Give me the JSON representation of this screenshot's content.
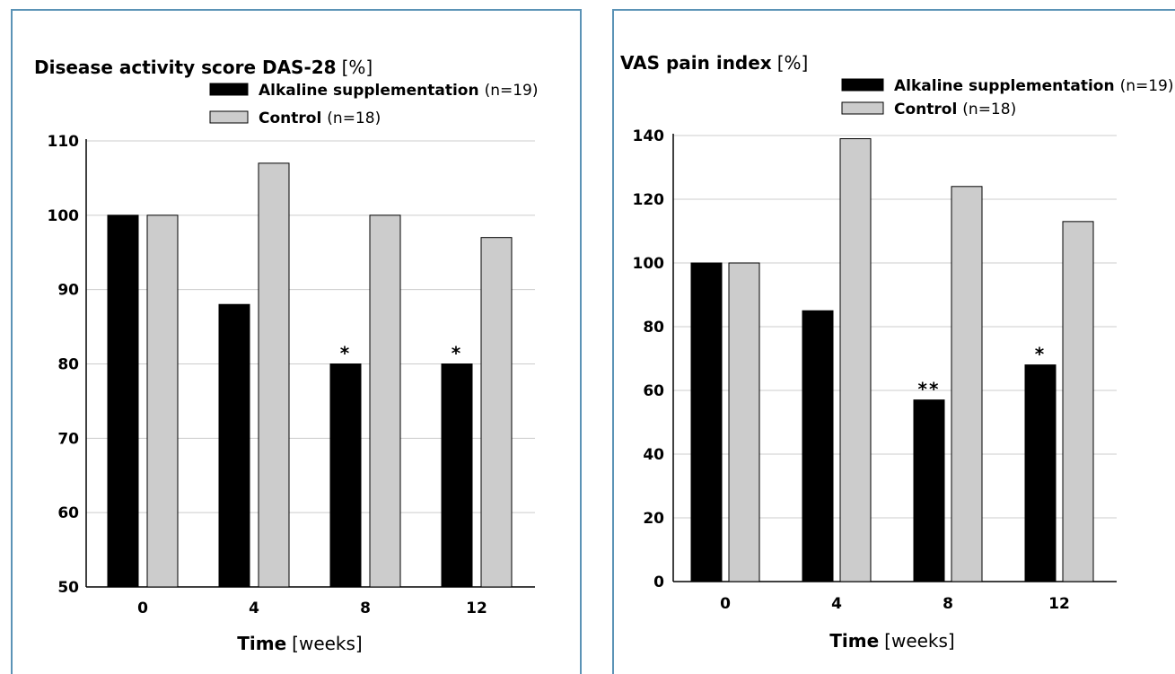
{
  "chart_data": [
    {
      "type": "bar",
      "title": "Disease activity score DAS-28",
      "title_unit": "[%]",
      "categories": [
        "0",
        "4",
        "8",
        "12"
      ],
      "series": [
        {
          "name": "Alkaline supplementation",
          "n_label": "(n=19)",
          "values": [
            100,
            88,
            80,
            80
          ],
          "color": "#000000"
        },
        {
          "name": "Control",
          "n_label": "(n=18)",
          "values": [
            100,
            107,
            100,
            97
          ],
          "color": "#cccccc"
        }
      ],
      "annotations": [
        {
          "category": "8",
          "series": 0,
          "text": "*"
        },
        {
          "category": "12",
          "series": 0,
          "text": "*"
        }
      ],
      "yticks": [
        50,
        60,
        70,
        80,
        90,
        100,
        110
      ],
      "ylim": [
        50,
        110
      ],
      "xlabel": "Time",
      "xlabel_unit": "[weeks]",
      "ylabel": "",
      "grid": true,
      "legend": "top-right"
    },
    {
      "type": "bar",
      "title": "VAS pain index",
      "title_unit": "[%]",
      "categories": [
        "0",
        "4",
        "8",
        "12"
      ],
      "series": [
        {
          "name": "Alkaline supplementation",
          "n_label": "(n=19)",
          "values": [
            100,
            85,
            57,
            68
          ],
          "color": "#000000"
        },
        {
          "name": "Control",
          "n_label": "(n=18)",
          "values": [
            100,
            139,
            124,
            113
          ],
          "color": "#cccccc"
        }
      ],
      "annotations": [
        {
          "category": "8",
          "series": 0,
          "text": "**"
        },
        {
          "category": "12",
          "series": 0,
          "text": "*"
        }
      ],
      "yticks": [
        0,
        20,
        40,
        60,
        80,
        100,
        120,
        140
      ],
      "ylim": [
        0,
        140
      ],
      "xlabel": "Time",
      "xlabel_unit": "[weeks]",
      "ylabel": "",
      "grid": true,
      "legend": "top-right"
    }
  ]
}
